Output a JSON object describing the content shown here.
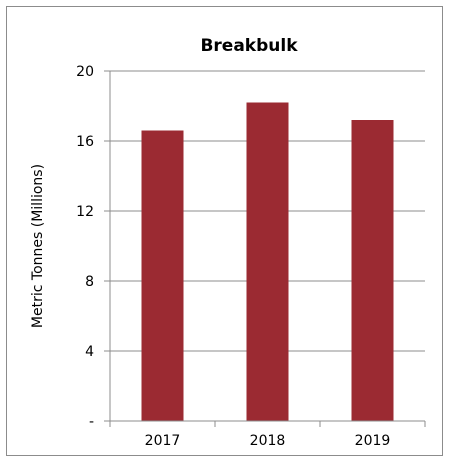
{
  "chart_data": {
    "type": "bar",
    "title": "Breakbulk",
    "xlabel": "",
    "ylabel": "Metric Tonnes  (Millions)",
    "categories": [
      "2017",
      "2018",
      "2019"
    ],
    "values": [
      16.6,
      18.2,
      17.2
    ],
    "ylim": [
      0,
      20
    ],
    "yticks": [
      0,
      4,
      8,
      12,
      16,
      20
    ],
    "ytick_labels": [
      "-",
      "4",
      "8",
      "12",
      "16",
      "20"
    ],
    "grid": true,
    "legend": "none",
    "bar_color": "#9B2A32",
    "gridline_color": "#8c8c8c"
  }
}
